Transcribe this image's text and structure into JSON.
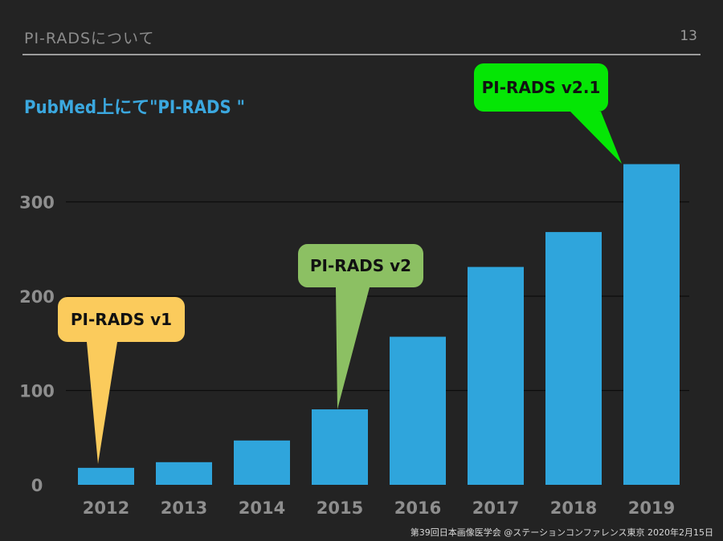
{
  "header": {
    "title": "PI-RADSについて",
    "page_number": "13"
  },
  "footer": {
    "text": "第39回日本画像医学会 @ステーションコンファレンス東京  2020年2月15日"
  },
  "colors": {
    "bar": "#2fa5dc",
    "v1_callout": "#fbcb5c",
    "v2_callout": "#8cc063",
    "v21_callout": "#05e605"
  },
  "chart_data": {
    "type": "bar",
    "title": "PubMed上にて\"PI-RADS \"",
    "categories": [
      "2012",
      "2013",
      "2014",
      "2015",
      "2016",
      "2017",
      "2018",
      "2019"
    ],
    "values": [
      18,
      24,
      47,
      80,
      157,
      231,
      268,
      340
    ],
    "ylim": [
      0,
      350
    ],
    "yticks": [
      0,
      100,
      200,
      300
    ],
    "grid": true,
    "annotations": [
      {
        "text": "PI-RADS v1",
        "category": "2012",
        "color_key": "v1_callout"
      },
      {
        "text": "PI-RADS v2",
        "category": "2015",
        "color_key": "v2_callout"
      },
      {
        "text": "PI-RADS v2.1",
        "category": "2019",
        "color_key": "v21_callout"
      }
    ]
  }
}
